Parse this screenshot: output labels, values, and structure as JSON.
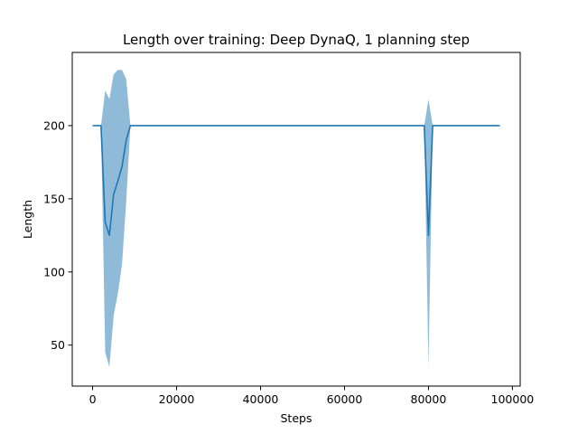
{
  "chart_data": {
    "type": "line",
    "title": "Length over training: Deep DynaQ, 1 planning step",
    "xlabel": "Steps",
    "ylabel": "Length",
    "xlim": [
      -4850,
      101850
    ],
    "ylim": [
      22,
      250
    ],
    "xticks": [
      0,
      20000,
      40000,
      60000,
      80000,
      100000
    ],
    "yticks": [
      50,
      100,
      150,
      200
    ],
    "xtick_labels": [
      "0",
      "20000",
      "40000",
      "60000",
      "80000",
      "100000"
    ],
    "ytick_labels": [
      "50",
      "100",
      "150",
      "200"
    ],
    "grid": false,
    "legend": "none",
    "colors": {
      "line": "#1f77b4",
      "band": "#1f77b4",
      "band_opacity": 0.5
    },
    "series": [
      {
        "x": [
          0,
          2000,
          3000,
          4000,
          5000,
          6000,
          7000,
          8000,
          9000,
          10000,
          20000,
          30000,
          40000,
          50000,
          60000,
          70000,
          79000,
          80000,
          81000,
          90000,
          97000
        ],
        "y": [
          200,
          200,
          134,
          125,
          153,
          162,
          172,
          190,
          200,
          200,
          200,
          200,
          200,
          200,
          200,
          200,
          200,
          125,
          200,
          200,
          200
        ],
        "upper": [
          200,
          200,
          224,
          218,
          235,
          238,
          238,
          232,
          200,
          200,
          200,
          200,
          200,
          200,
          200,
          200,
          200,
          218,
          200,
          200,
          200
        ],
        "lower": [
          200,
          200,
          45,
          35,
          70,
          85,
          105,
          148,
          200,
          200,
          200,
          200,
          200,
          200,
          200,
          200,
          200,
          35,
          200,
          200,
          200
        ]
      }
    ]
  }
}
